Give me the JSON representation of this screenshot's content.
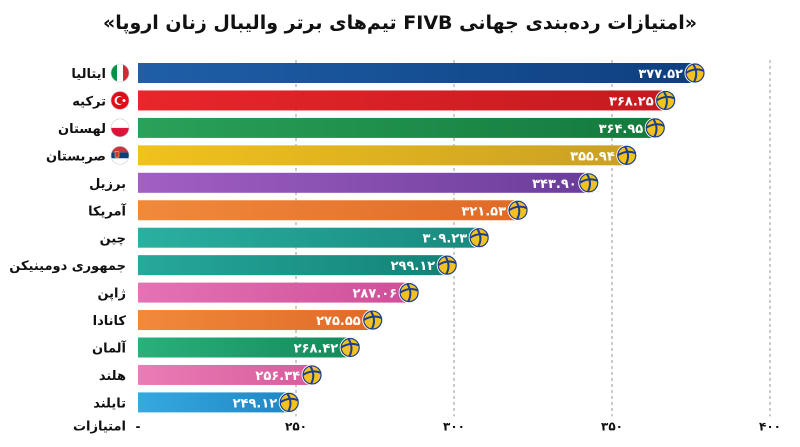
{
  "chart_data": {
    "type": "bar",
    "orientation": "horizontal",
    "title": "«امتیازات رده‌بندی جهانی FIVB تیم‌های برتر والیبال زنان اروپا»",
    "xlabel": "امتیازات",
    "categories": [
      "ایتالیا",
      "ترکیه",
      "لهستان",
      "صربستان",
      "برزیل",
      "آمریکا",
      "چین",
      "جمهوری دومینیکن",
      "ژاپن",
      "کانادا",
      "آلمان",
      "هلند",
      "تایلند"
    ],
    "values": [
      377.52,
      368.25,
      364.95,
      355.94,
      343.9,
      321.53,
      309.23,
      299.12,
      287.06,
      275.55,
      268.42,
      256.34,
      249.12
    ],
    "value_labels": [
      "۳۷۷.۵۲",
      "۳۶۸.۲۵",
      "۳۶۴.۹۵",
      "۳۵۵.۹۴",
      "۳۴۳.۹۰",
      "۳۲۱.۵۳",
      "۳۰۹.۲۳",
      "۲۹۹.۱۲",
      "۲۸۷.۰۶",
      "۲۷۵.۵۵",
      "۲۶۸.۴۲",
      "۲۵۶.۳۴",
      "۲۴۹.۱۲"
    ],
    "bar_colors": [
      [
        "#1f5fa8",
        "#0d3f7f"
      ],
      [
        "#e8262b",
        "#c41a1f"
      ],
      [
        "#2aa15a",
        "#137a3c"
      ],
      [
        "#f1c21b",
        "#caa024"
      ],
      [
        "#a25fc4",
        "#6a3d9a"
      ],
      [
        "#f08a3b",
        "#e06a28"
      ],
      [
        "#2ab0a0",
        "#178a7e"
      ],
      [
        "#26a89a",
        "#138277"
      ],
      [
        "#e572b4",
        "#cf4f98"
      ],
      [
        "#f08a3b",
        "#e06a28"
      ],
      [
        "#2ab07a",
        "#138a5a"
      ],
      [
        "#ea7cb6",
        "#d75c9c"
      ],
      [
        "#36a9e0",
        "#1f86c4"
      ]
    ],
    "flags": [
      "italy",
      "turkey",
      "poland",
      "serbia"
    ],
    "xlim": [
      200,
      400
    ],
    "ticks": [
      {
        "value": 200,
        "label": "-"
      },
      {
        "value": 250,
        "label": "۲۵۰"
      },
      {
        "value": 300,
        "label": "۳۰۰"
      },
      {
        "value": 350,
        "label": "۳۵۰"
      },
      {
        "value": 400,
        "label": "۴۰۰"
      }
    ],
    "grid": true,
    "value_icon": "volleyball-icon",
    "colors": {
      "ball_blue": "#1b3f8f",
      "ball_yellow": "#f4c21f",
      "grid": "#9a9a9a"
    }
  }
}
